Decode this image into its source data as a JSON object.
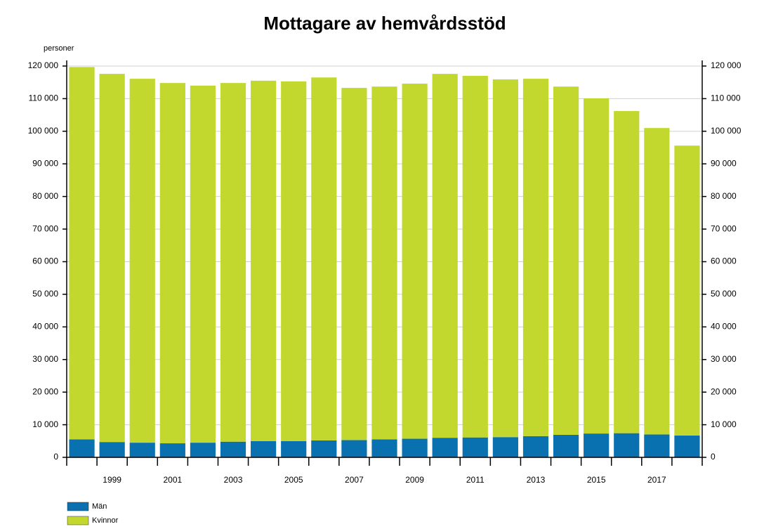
{
  "chart_data": {
    "type": "bar",
    "stacked": true,
    "title": "Mottagare av hemvårdsstöd",
    "y_label": "personer",
    "categories": [
      null,
      "1999",
      null,
      "2001",
      null,
      "2003",
      null,
      "2005",
      null,
      "2007",
      null,
      "2009",
      null,
      "2011",
      null,
      "2013",
      null,
      "2015",
      null,
      "2017",
      null
    ],
    "series": [
      {
        "name": "Män",
        "color": "#0a71b0",
        "values": [
          5500,
          4700,
          4500,
          4300,
          4500,
          4800,
          5000,
          5000,
          5200,
          5300,
          5500,
          5700,
          6000,
          6100,
          6200,
          6500,
          6900,
          7300,
          7400,
          7000,
          6700
        ]
      },
      {
        "name": "Kvinnor",
        "color": "#c3d82e",
        "values": [
          114200,
          112900,
          111600,
          110500,
          109500,
          110000,
          110500,
          110300,
          111300,
          108000,
          108200,
          108900,
          111600,
          110900,
          109700,
          109600,
          106800,
          102800,
          98800,
          94000,
          88900
        ]
      }
    ],
    "ylim": [
      0,
      120000
    ],
    "yticks": [
      0,
      {
        "value": 10000,
        "label": "10 000"
      },
      {
        "value": 20000,
        "label": "20 000"
      },
      {
        "value": 30000,
        "label": "30 000"
      },
      {
        "value": 40000,
        "label": "40 000"
      },
      {
        "value": 50000,
        "label": "50 000"
      },
      {
        "value": 60000,
        "label": "60 000"
      },
      {
        "value": 70000,
        "label": "70 000"
      },
      {
        "value": 80000,
        "label": "80 000"
      },
      {
        "value": 90000,
        "label": "90 000"
      },
      {
        "value": 100000,
        "label": "100 000"
      },
      {
        "value": 110000,
        "label": "110 000"
      },
      {
        "value": 120000,
        "label": "120 000"
      }
    ],
    "grid": true,
    "legend": "bottom-left"
  }
}
